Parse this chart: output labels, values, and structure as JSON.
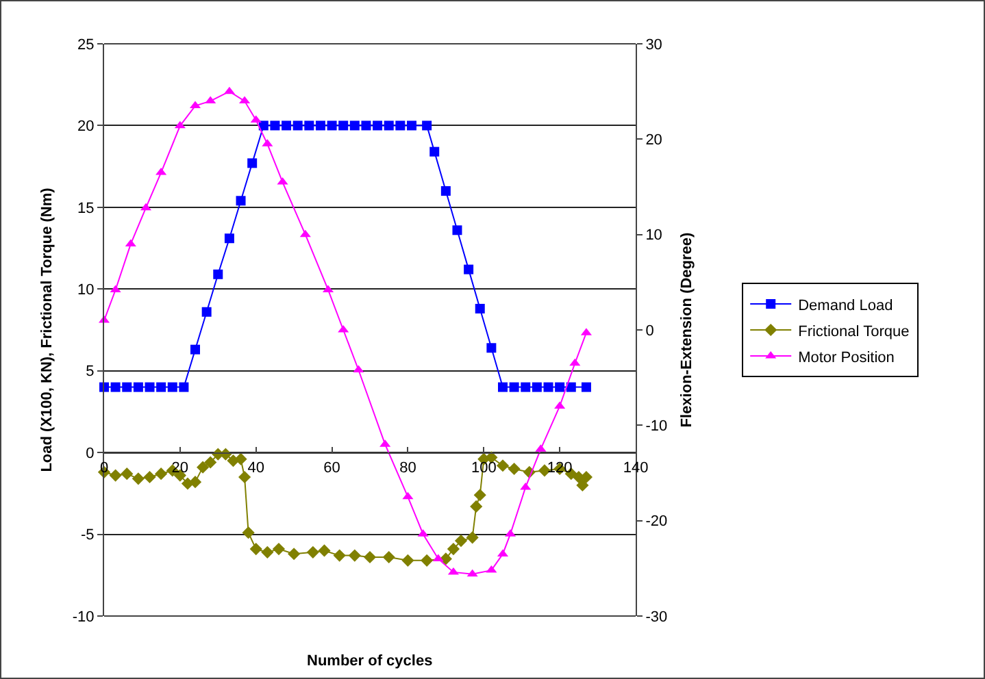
{
  "chart_data": {
    "type": "line",
    "xlabel": "Number of cycles",
    "ylabel": "Load (X100, KN), Frictional Torque (Nm)",
    "y2label": "Flexion-Extension (Degree)",
    "xlim": [
      0,
      140
    ],
    "xticks": [
      0,
      20,
      40,
      60,
      80,
      100,
      120,
      140
    ],
    "ylim": [
      -10,
      25
    ],
    "yticks": [
      -10,
      -5,
      0,
      5,
      10,
      15,
      20,
      25
    ],
    "y2lim": [
      -30,
      30
    ],
    "y2ticks": [
      -30,
      -20,
      -10,
      0,
      10,
      20,
      30
    ],
    "grid": "y",
    "legend": "right",
    "series": [
      {
        "name": "Demand Load",
        "color": "#0000ff",
        "marker": "square",
        "x": [
          0,
          3,
          6,
          9,
          12,
          15,
          18,
          21,
          24,
          27,
          30,
          33,
          36,
          39,
          42,
          45,
          48,
          51,
          54,
          57,
          60,
          63,
          66,
          69,
          72,
          75,
          78,
          81,
          85,
          87,
          90,
          93,
          96,
          99,
          102,
          105,
          108,
          111,
          114,
          117,
          120,
          123,
          127
        ],
        "values": [
          4,
          4,
          4,
          4,
          4,
          4,
          4,
          4,
          6.3,
          8.6,
          10.9,
          13.1,
          15.4,
          17.7,
          20,
          20,
          20,
          20,
          20,
          20,
          20,
          20,
          20,
          20,
          20,
          20,
          20,
          20,
          20,
          18.4,
          16,
          13.6,
          11.2,
          8.8,
          6.4,
          4,
          4,
          4,
          4,
          4,
          4,
          4,
          4
        ]
      },
      {
        "name": "Frictional Torque",
        "color": "#808000",
        "marker": "diamond",
        "x": [
          0,
          3,
          6,
          9,
          12,
          15,
          18,
          20,
          22,
          24,
          26,
          28,
          30,
          32,
          34,
          36,
          37,
          38,
          40,
          43,
          46,
          50,
          55,
          58,
          62,
          66,
          70,
          75,
          80,
          85,
          90,
          92,
          94,
          97,
          98,
          99,
          100,
          102,
          105,
          108,
          112,
          116,
          120,
          123,
          125,
          126,
          127
        ],
        "values": [
          -1.2,
          -1.4,
          -1.3,
          -1.6,
          -1.5,
          -1.3,
          -1.1,
          -1.4,
          -1.9,
          -1.8,
          -0.9,
          -0.6,
          -0.1,
          -0.1,
          -0.5,
          -0.4,
          -1.5,
          -4.9,
          -5.9,
          -6.1,
          -5.9,
          -6.2,
          -6.1,
          -6,
          -6.3,
          -6.3,
          -6.4,
          -6.4,
          -6.6,
          -6.6,
          -6.5,
          -5.9,
          -5.4,
          -5.2,
          -3.3,
          -2.6,
          -0.4,
          -0.3,
          -0.8,
          -1,
          -1.2,
          -1.1,
          -1,
          -1.3,
          -1.5,
          -2,
          -1.5
        ]
      },
      {
        "name": "Motor Position",
        "color": "#ff00ff",
        "marker": "triangle",
        "axis": "y2",
        "x": [
          0,
          3,
          7,
          11,
          15,
          20,
          24,
          28,
          33,
          37,
          40,
          43,
          47,
          53,
          59,
          63,
          67,
          74,
          80,
          84,
          88,
          92,
          97,
          102,
          105,
          107,
          111,
          115,
          120,
          124,
          127
        ],
        "values": [
          1,
          4.2,
          9,
          12.8,
          16.5,
          21.4,
          23.5,
          24,
          25,
          24,
          22,
          19.5,
          15.5,
          10,
          4.2,
          0,
          -4.2,
          -12,
          -17.5,
          -21.4,
          -24,
          -25.4,
          -25.6,
          -25.2,
          -23.5,
          -21.4,
          -16.5,
          -12.5,
          -8,
          -3.5,
          -0.3
        ]
      }
    ]
  }
}
